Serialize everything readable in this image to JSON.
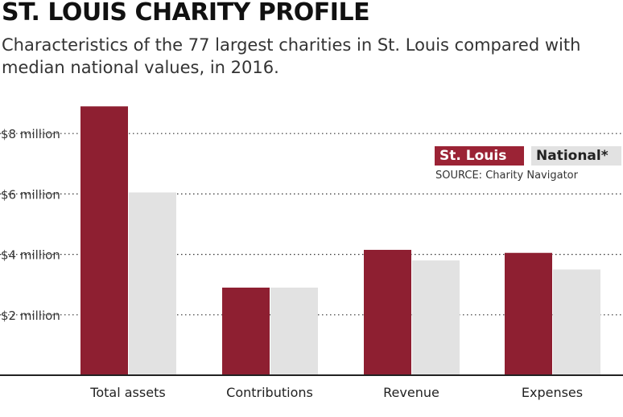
{
  "header": {
    "title": "ST. LOUIS CHARITY PROFILE",
    "subtitle": "Characteristics of the 77 largest charities in St. Louis compared with median national values, in 2016."
  },
  "source": "SOURCE: Charity Navigator",
  "chart_data": {
    "type": "bar",
    "categories": [
      "Total assets",
      "Contributions",
      "Revenue",
      "Expenses"
    ],
    "series": [
      {
        "name": "St. Louis",
        "values": [
          8.9,
          2.9,
          4.15,
          4.05
        ],
        "color": "#8e1f31"
      },
      {
        "name": "National*",
        "values": [
          6.05,
          2.9,
          3.8,
          3.5
        ],
        "color": "#e2e2e2"
      }
    ],
    "yticks": [
      "$2 million",
      "$4 million",
      "$6 million",
      "$8 million"
    ],
    "ytick_values": [
      2,
      4,
      6,
      8
    ],
    "ylim": [
      0,
      9
    ],
    "grid": true,
    "legend": "top-right"
  }
}
